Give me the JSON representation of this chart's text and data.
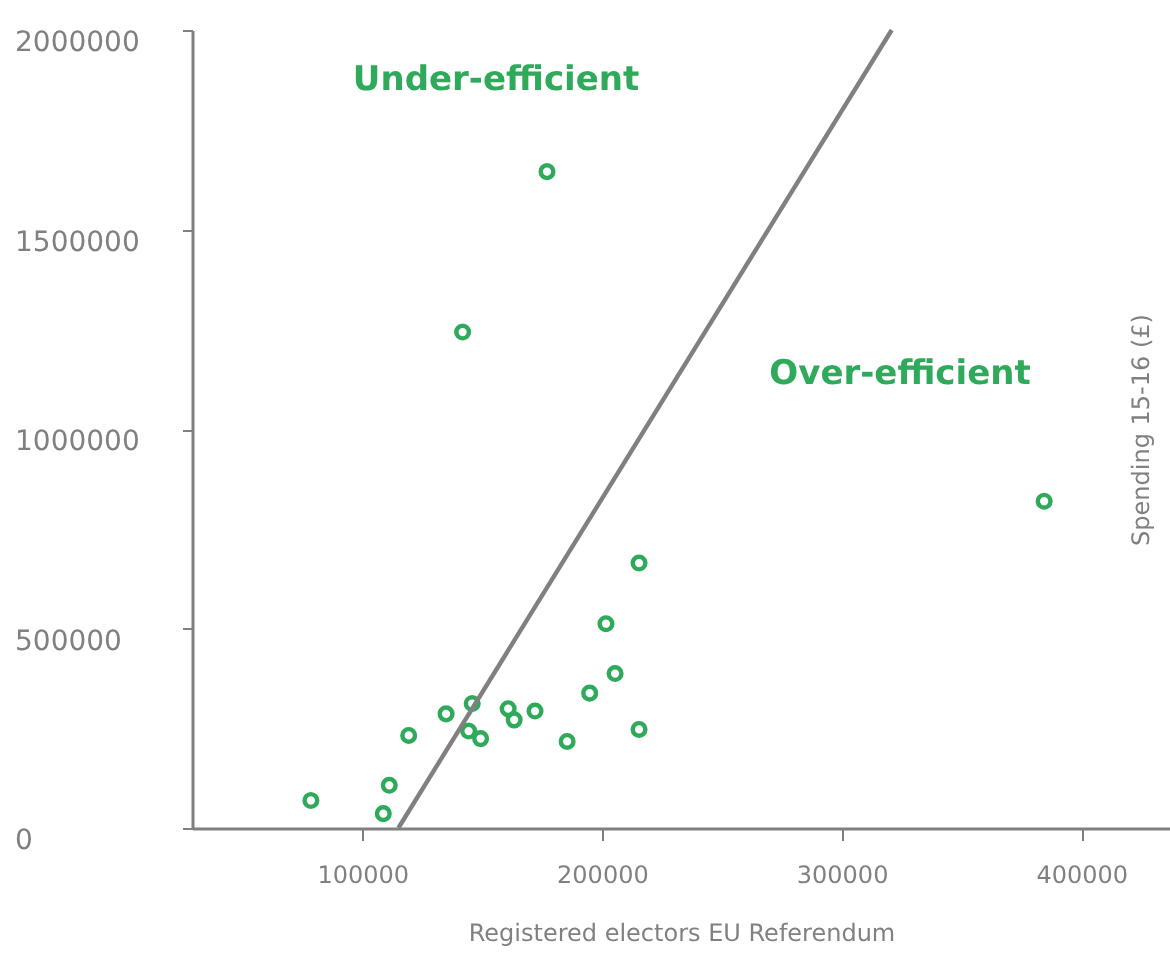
{
  "chart_data": {
    "type": "scatter",
    "xlabel": "Registered electors EU Referendum",
    "ylabel": "Spending 15-16 (£)",
    "xlim": [
      29000,
      437000
    ],
    "xticks": [
      100000,
      200000,
      300000,
      400000
    ],
    "ylim": [
      0,
      2000000
    ],
    "yticks": [
      0,
      500000,
      1000000,
      1500000,
      2000000
    ],
    "grid": false,
    "marker": "circle",
    "series": [
      {
        "color": "#2eaa5a",
        "x": [
          78600,
          108800,
          111300,
          119400,
          135000,
          145900,
          144400,
          149400,
          141900,
          177100,
          160900,
          163400,
          172100,
          185500,
          194900,
          201700,
          205500,
          215500,
          215500,
          384500
        ],
        "values": [
          69000,
          36000,
          107000,
          232000,
          286000,
          312000,
          243000,
          224000,
          1243000,
          1645000,
          299000,
          271000,
          293000,
          217000,
          338000,
          512000,
          387000,
          664000,
          247000,
          819000
        ]
      },
      {
        "type": "line",
        "color": "#808080",
        "line_style": "solid",
        "marker": "none",
        "x": [
          115100,
          320900
        ],
        "values": [
          0,
          2000000
        ]
      }
    ],
    "annotations": [
      "Under-efficient",
      "Over-efficient"
    ]
  }
}
